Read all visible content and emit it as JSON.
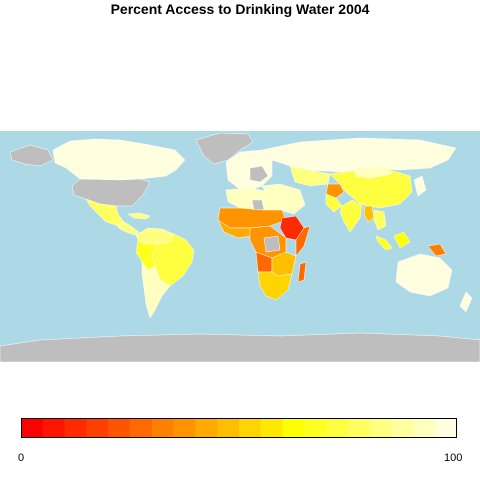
{
  "title": "Percent Access to Drinking Water 2004",
  "colors": {
    "ocean": "#add8e6",
    "no_data": "#bebebe",
    "border": "#ffffff",
    "legend_outline": "#000000",
    "palette": [
      "#ff0000",
      "#ff1500",
      "#ff2a00",
      "#ff3f00",
      "#ff5500",
      "#ff6a00",
      "#ff7f00",
      "#ff9400",
      "#ffaa00",
      "#ffbf00",
      "#ffd400",
      "#ffe900",
      "#ffff00",
      "#ffff20",
      "#ffff40",
      "#ffff60",
      "#ffff80",
      "#ffff9f",
      "#ffffbf",
      "#ffffdf"
    ]
  },
  "legend": {
    "min_label": "0",
    "max_label": "100",
    "range": [
      0,
      100
    ]
  }
}
